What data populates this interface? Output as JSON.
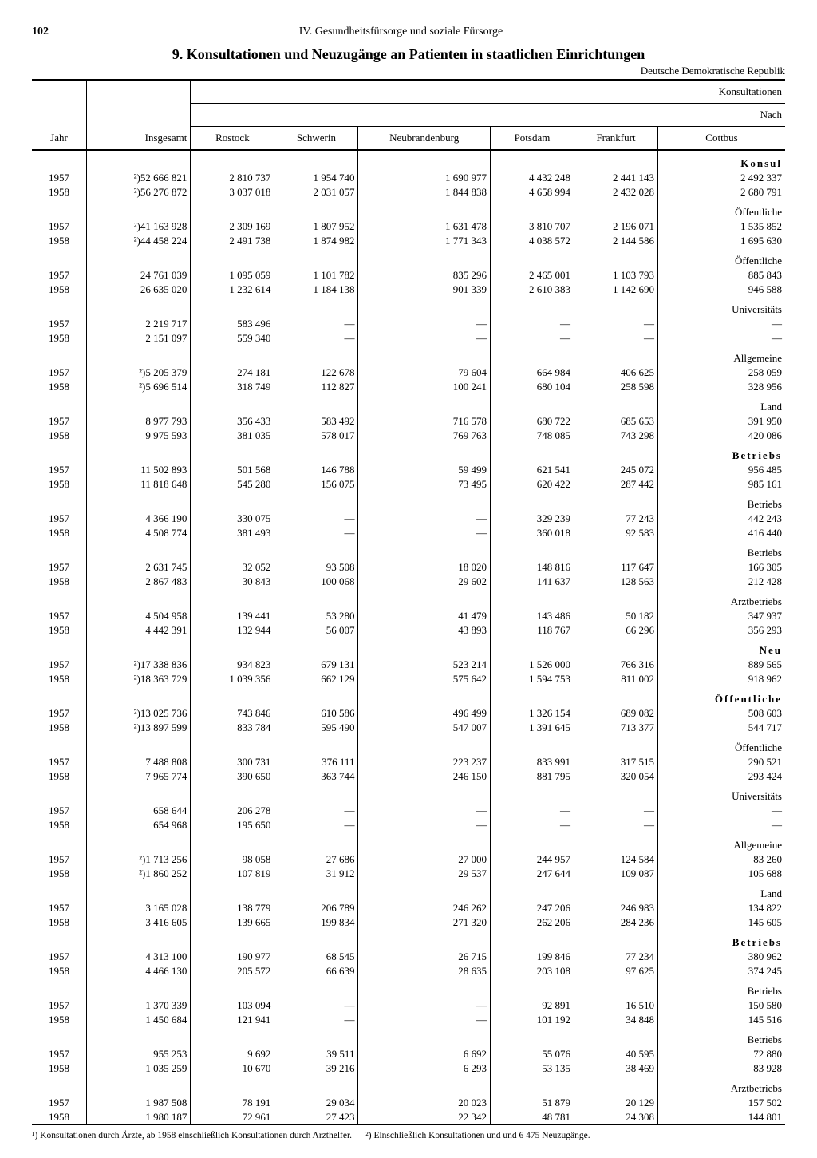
{
  "page": {
    "number": "102",
    "chapter": "IV. Gesundheitsfürsorge und soziale Fürsorge",
    "title": "9. Konsultationen und Neuzugänge an Patienten in staatlichen Einrichtungen",
    "subtitle": "Deutsche Demokratische Republik",
    "right_header_1": "Konsultationen",
    "right_header_2": "Nach"
  },
  "columns": {
    "jahr": "Jahr",
    "insgesamt": "Insgesamt",
    "c1": "Rostock",
    "c2": "Schwerin",
    "c3": "Neubrandenburg",
    "c4": "Potsdam",
    "c5": "Frankfurt",
    "c6": "Cottbus"
  },
  "groups": [
    {
      "label": "Konsul",
      "bold": true,
      "rows": [
        {
          "jahr": "1957",
          "ins": "²)52 666 821",
          "c1": "2 810 737",
          "c2": "1 954 740",
          "c3": "1 690 977",
          "c4": "4 432 248",
          "c5": "2 441 143",
          "c6": "2 492 337"
        },
        {
          "jahr": "1958",
          "ins": "²)56 276 872",
          "c1": "3 037 018",
          "c2": "2 031 057",
          "c3": "1 844 838",
          "c4": "4 658 994",
          "c5": "2 432 028",
          "c6": "2 680 791"
        }
      ]
    },
    {
      "label": "Öffentliche",
      "bold": false,
      "rows": [
        {
          "jahr": "1957",
          "ins": "²)41 163 928",
          "c1": "2 309 169",
          "c2": "1 807 952",
          "c3": "1 631 478",
          "c4": "3 810 707",
          "c5": "2 196 071",
          "c6": "1 535 852"
        },
        {
          "jahr": "1958",
          "ins": "²)44 458 224",
          "c1": "2 491 738",
          "c2": "1 874 982",
          "c3": "1 771 343",
          "c4": "4 038 572",
          "c5": "2 144 586",
          "c6": "1 695 630"
        }
      ]
    },
    {
      "label": "Öffentliche",
      "bold": false,
      "rows": [
        {
          "jahr": "1957",
          "ins": "24 761 039",
          "c1": "1 095 059",
          "c2": "1 101 782",
          "c3": "835 296",
          "c4": "2 465 001",
          "c5": "1 103 793",
          "c6": "885 843"
        },
        {
          "jahr": "1958",
          "ins": "26 635 020",
          "c1": "1 232 614",
          "c2": "1 184 138",
          "c3": "901 339",
          "c4": "2 610 383",
          "c5": "1 142 690",
          "c6": "946 588"
        }
      ]
    },
    {
      "label": "Universitäts",
      "bold": false,
      "rows": [
        {
          "jahr": "1957",
          "ins": "2 219 717",
          "c1": "583 496",
          "c2": "—",
          "c3": "—",
          "c4": "—",
          "c5": "—",
          "c6": "—"
        },
        {
          "jahr": "1958",
          "ins": "2 151 097",
          "c1": "559 340",
          "c2": "—",
          "c3": "—",
          "c4": "—",
          "c5": "—",
          "c6": "—"
        }
      ]
    },
    {
      "label": "Allgemeine",
      "bold": false,
      "rows": [
        {
          "jahr": "1957",
          "ins": "²)5 205 379",
          "c1": "274 181",
          "c2": "122 678",
          "c3": "79 604",
          "c4": "664 984",
          "c5": "406 625",
          "c6": "258 059"
        },
        {
          "jahr": "1958",
          "ins": "²)5 696 514",
          "c1": "318 749",
          "c2": "112 827",
          "c3": "100 241",
          "c4": "680 104",
          "c5": "258 598",
          "c6": "328 956"
        }
      ]
    },
    {
      "label": "Land",
      "bold": false,
      "rows": [
        {
          "jahr": "1957",
          "ins": "8 977 793",
          "c1": "356 433",
          "c2": "583 492",
          "c3": "716 578",
          "c4": "680 722",
          "c5": "685 653",
          "c6": "391 950"
        },
        {
          "jahr": "1958",
          "ins": "9 975 593",
          "c1": "381 035",
          "c2": "578 017",
          "c3": "769 763",
          "c4": "748 085",
          "c5": "743 298",
          "c6": "420 086"
        }
      ]
    },
    {
      "label": "Betriebs",
      "bold": true,
      "rows": [
        {
          "jahr": "1957",
          "ins": "11 502 893",
          "c1": "501 568",
          "c2": "146 788",
          "c3": "59 499",
          "c4": "621 541",
          "c5": "245 072",
          "c6": "956 485"
        },
        {
          "jahr": "1958",
          "ins": "11 818 648",
          "c1": "545 280",
          "c2": "156 075",
          "c3": "73 495",
          "c4": "620 422",
          "c5": "287 442",
          "c6": "985 161"
        }
      ]
    },
    {
      "label": "Betriebs",
      "bold": false,
      "rows": [
        {
          "jahr": "1957",
          "ins": "4 366 190",
          "c1": "330 075",
          "c2": "—",
          "c3": "—",
          "c4": "329 239",
          "c5": "77 243",
          "c6": "442 243"
        },
        {
          "jahr": "1958",
          "ins": "4 508 774",
          "c1": "381 493",
          "c2": "—",
          "c3": "—",
          "c4": "360 018",
          "c5": "92 583",
          "c6": "416 440"
        }
      ]
    },
    {
      "label": "Betriebs",
      "bold": false,
      "rows": [
        {
          "jahr": "1957",
          "ins": "2 631 745",
          "c1": "32 052",
          "c2": "93 508",
          "c3": "18 020",
          "c4": "148 816",
          "c5": "117 647",
          "c6": "166 305"
        },
        {
          "jahr": "1958",
          "ins": "2 867 483",
          "c1": "30 843",
          "c2": "100 068",
          "c3": "29 602",
          "c4": "141 637",
          "c5": "128 563",
          "c6": "212 428"
        }
      ]
    },
    {
      "label": "Arztbetriebs",
      "bold": false,
      "rows": [
        {
          "jahr": "1957",
          "ins": "4 504 958",
          "c1": "139 441",
          "c2": "53 280",
          "c3": "41 479",
          "c4": "143 486",
          "c5": "50 182",
          "c6": "347 937"
        },
        {
          "jahr": "1958",
          "ins": "4 442 391",
          "c1": "132 944",
          "c2": "56 007",
          "c3": "43 893",
          "c4": "118 767",
          "c5": "66 296",
          "c6": "356 293"
        }
      ]
    },
    {
      "label": "Neu",
      "bold": true,
      "rows": [
        {
          "jahr": "1957",
          "ins": "²)17 338 836",
          "c1": "934 823",
          "c2": "679 131",
          "c3": "523 214",
          "c4": "1 526 000",
          "c5": "766 316",
          "c6": "889 565"
        },
        {
          "jahr": "1958",
          "ins": "²)18 363 729",
          "c1": "1 039 356",
          "c2": "662 129",
          "c3": "575 642",
          "c4": "1 594 753",
          "c5": "811 002",
          "c6": "918 962"
        }
      ]
    },
    {
      "label": "Öffentliche",
      "bold": true,
      "rows": [
        {
          "jahr": "1957",
          "ins": "²)13 025 736",
          "c1": "743 846",
          "c2": "610 586",
          "c3": "496 499",
          "c4": "1 326 154",
          "c5": "689 082",
          "c6": "508 603"
        },
        {
          "jahr": "1958",
          "ins": "²)13 897 599",
          "c1": "833 784",
          "c2": "595 490",
          "c3": "547 007",
          "c4": "1 391 645",
          "c5": "713 377",
          "c6": "544 717"
        }
      ]
    },
    {
      "label": "Öffentliche",
      "bold": false,
      "rows": [
        {
          "jahr": "1957",
          "ins": "7 488 808",
          "c1": "300 731",
          "c2": "376 111",
          "c3": "223 237",
          "c4": "833 991",
          "c5": "317 515",
          "c6": "290 521"
        },
        {
          "jahr": "1958",
          "ins": "7 965 774",
          "c1": "390 650",
          "c2": "363 744",
          "c3": "246 150",
          "c4": "881 795",
          "c5": "320 054",
          "c6": "293 424"
        }
      ]
    },
    {
      "label": "Universitäts",
      "bold": false,
      "rows": [
        {
          "jahr": "1957",
          "ins": "658 644",
          "c1": "206 278",
          "c2": "—",
          "c3": "—",
          "c4": "—",
          "c5": "—",
          "c6": "—"
        },
        {
          "jahr": "1958",
          "ins": "654 968",
          "c1": "195 650",
          "c2": "—",
          "c3": "—",
          "c4": "—",
          "c5": "—",
          "c6": "—"
        }
      ]
    },
    {
      "label": "Allgemeine",
      "bold": false,
      "rows": [
        {
          "jahr": "1957",
          "ins": "²)1 713 256",
          "c1": "98 058",
          "c2": "27 686",
          "c3": "27 000",
          "c4": "244 957",
          "c5": "124 584",
          "c6": "83 260"
        },
        {
          "jahr": "1958",
          "ins": "²)1 860 252",
          "c1": "107 819",
          "c2": "31 912",
          "c3": "29 537",
          "c4": "247 644",
          "c5": "109 087",
          "c6": "105 688"
        }
      ]
    },
    {
      "label": "Land",
      "bold": false,
      "rows": [
        {
          "jahr": "1957",
          "ins": "3 165 028",
          "c1": "138 779",
          "c2": "206 789",
          "c3": "246 262",
          "c4": "247 206",
          "c5": "246 983",
          "c6": "134 822"
        },
        {
          "jahr": "1958",
          "ins": "3 416 605",
          "c1": "139 665",
          "c2": "199 834",
          "c3": "271 320",
          "c4": "262 206",
          "c5": "284 236",
          "c6": "145 605"
        }
      ]
    },
    {
      "label": "Betriebs",
      "bold": true,
      "rows": [
        {
          "jahr": "1957",
          "ins": "4 313 100",
          "c1": "190 977",
          "c2": "68 545",
          "c3": "26 715",
          "c4": "199 846",
          "c5": "77 234",
          "c6": "380 962"
        },
        {
          "jahr": "1958",
          "ins": "4 466 130",
          "c1": "205 572",
          "c2": "66 639",
          "c3": "28 635",
          "c4": "203 108",
          "c5": "97 625",
          "c6": "374 245"
        }
      ]
    },
    {
      "label": "Betriebs",
      "bold": false,
      "rows": [
        {
          "jahr": "1957",
          "ins": "1 370 339",
          "c1": "103 094",
          "c2": "—",
          "c3": "—",
          "c4": "92 891",
          "c5": "16 510",
          "c6": "150 580"
        },
        {
          "jahr": "1958",
          "ins": "1 450 684",
          "c1": "121 941",
          "c2": "—",
          "c3": "—",
          "c4": "101 192",
          "c5": "34 848",
          "c6": "145 516"
        }
      ]
    },
    {
      "label": "Betriebs",
      "bold": false,
      "rows": [
        {
          "jahr": "1957",
          "ins": "955 253",
          "c1": "9 692",
          "c2": "39 511",
          "c3": "6 692",
          "c4": "55 076",
          "c5": "40 595",
          "c6": "72 880"
        },
        {
          "jahr": "1958",
          "ins": "1 035 259",
          "c1": "10 670",
          "c2": "39 216",
          "c3": "6 293",
          "c4": "53 135",
          "c5": "38 469",
          "c6": "83 928"
        }
      ]
    },
    {
      "label": "Arztbetriebs",
      "bold": false,
      "rows": [
        {
          "jahr": "1957",
          "ins": "1 987 508",
          "c1": "78 191",
          "c2": "29 034",
          "c3": "20 023",
          "c4": "51 879",
          "c5": "20 129",
          "c6": "157 502"
        },
        {
          "jahr": "1958",
          "ins": "1 980 187",
          "c1": "72 961",
          "c2": "27 423",
          "c3": "22 342",
          "c4": "48 781",
          "c5": "24 308",
          "c6": "144 801"
        }
      ]
    }
  ],
  "footnote": "¹) Konsultationen durch Ärzte, ab 1958 einschließlich Konsultationen durch Arzthelfer. — ²) Einschließlich Konsultationen und und 6 475 Neuzugänge."
}
